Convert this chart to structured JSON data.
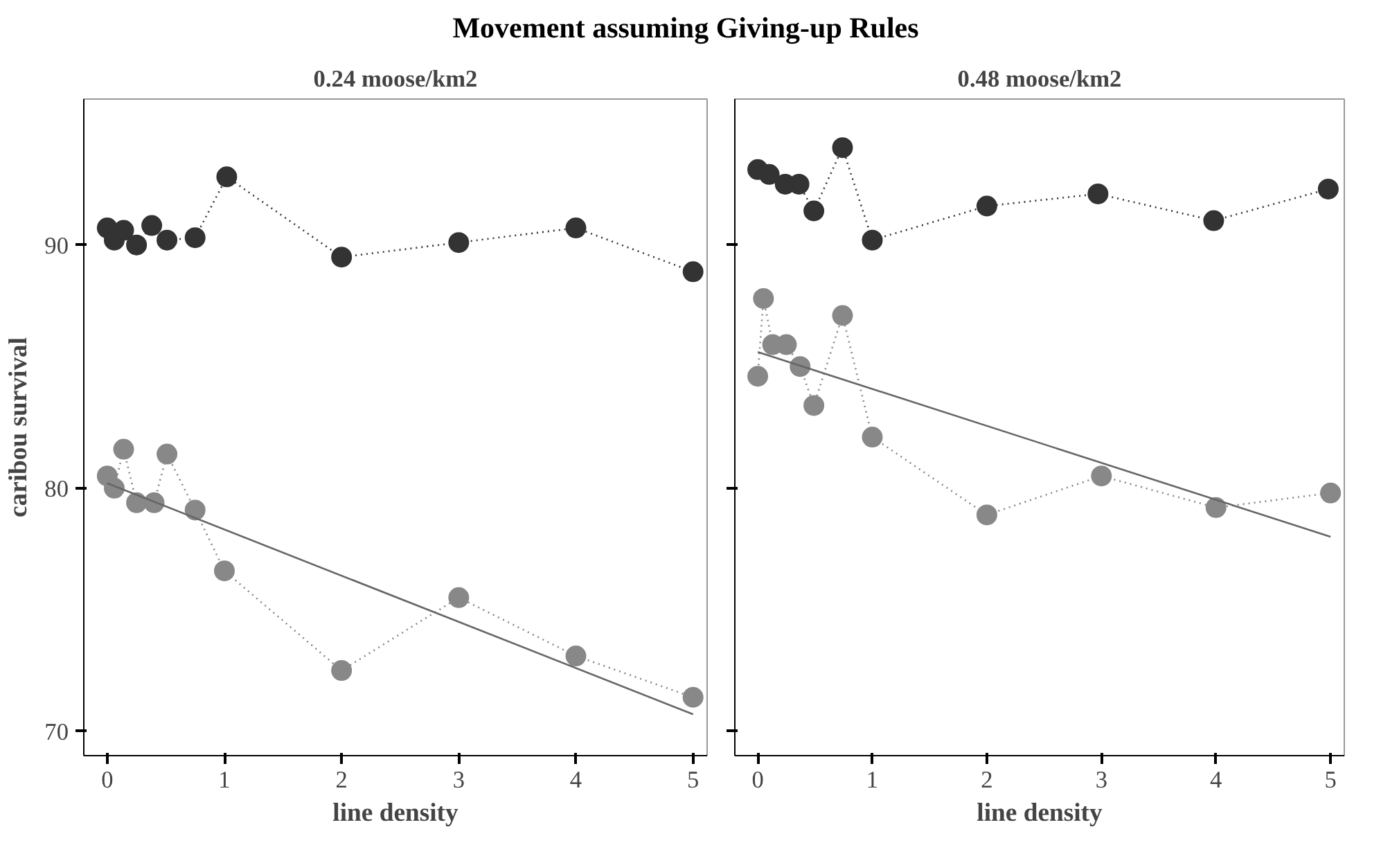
{
  "chart_data": [
    {
      "type": "line",
      "title": "Movement assuming Giving-up Rules",
      "subtitle": "0.24 moose/km2",
      "xlabel": "line density",
      "ylabel": "caribou survival",
      "xlim": [
        -0.2,
        5.12
      ],
      "ylim": [
        69,
        96
      ],
      "xticks": [
        0,
        1,
        2,
        3,
        4,
        5
      ],
      "yticks": [
        70,
        80,
        90
      ],
      "grid": false,
      "series": [
        {
          "color": "#333333",
          "marker": "circle",
          "line_style": "dotted",
          "x": [
            0,
            0.06,
            0.14,
            0.25,
            0.38,
            0.51,
            0.75,
            1.02,
            2,
            3,
            4,
            5
          ],
          "values": [
            90.7,
            90.2,
            90.6,
            90.0,
            90.8,
            90.2,
            90.3,
            92.8,
            89.5,
            90.1,
            90.7,
            88.9
          ]
        },
        {
          "color": "#888888",
          "marker": "circle",
          "line_style": "dotted",
          "x": [
            0,
            0.06,
            0.14,
            0.25,
            0.4,
            0.51,
            0.75,
            1,
            2,
            3,
            4,
            5
          ],
          "values": [
            80.5,
            80.0,
            81.6,
            79.4,
            79.4,
            81.4,
            79.1,
            76.6,
            72.5,
            75.5,
            73.1,
            71.4
          ]
        },
        {
          "color": "#666666",
          "marker": "none",
          "line_style": "solid",
          "x": [
            0,
            5
          ],
          "values": [
            80.2,
            70.7
          ]
        }
      ]
    },
    {
      "type": "line",
      "subtitle": "0.48 moose/km2",
      "xlabel": "line density",
      "xlim": [
        -0.2,
        5.12
      ],
      "ylim": [
        69,
        96
      ],
      "xticks": [
        0,
        1,
        2,
        3,
        4,
        5
      ],
      "yticks": [
        70,
        80,
        90
      ],
      "grid": false,
      "tick_labels": "x",
      "series": [
        {
          "color": "#333333",
          "marker": "circle",
          "line_style": "dotted",
          "x": [
            0,
            0.1,
            0.24,
            0.36,
            0.49,
            0.74,
            1,
            2,
            2.97,
            3.98,
            4.98
          ],
          "values": [
            93.1,
            92.9,
            92.5,
            92.5,
            91.4,
            94.0,
            90.2,
            91.6,
            92.1,
            91.0,
            92.3
          ]
        },
        {
          "color": "#888888",
          "marker": "circle",
          "line_style": "dotted",
          "x": [
            0,
            0.05,
            0.13,
            0.25,
            0.37,
            0.49,
            0.74,
            1,
            2,
            3,
            4,
            5
          ],
          "values": [
            84.6,
            87.8,
            85.9,
            85.9,
            85.0,
            83.4,
            87.1,
            82.1,
            78.9,
            80.5,
            79.2,
            79.8
          ]
        },
        {
          "color": "#666666",
          "marker": "none",
          "line_style": "solid",
          "x": [
            0,
            5
          ],
          "values": [
            85.6,
            78.0
          ]
        }
      ]
    }
  ]
}
